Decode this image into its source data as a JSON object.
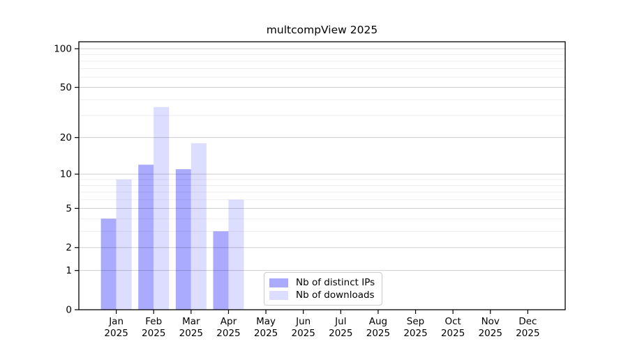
{
  "chart_data": {
    "type": "bar",
    "title": "multcompView 2025",
    "scale": "log1p",
    "categories": [
      "Jan",
      "Feb",
      "Mar",
      "Apr",
      "May",
      "Jun",
      "Jul",
      "Aug",
      "Sep",
      "Oct",
      "Nov",
      "Dec"
    ],
    "x_tick_second_line": "2025",
    "series": [
      {
        "name": "Nb of distinct IPs",
        "color": "#aaaaff",
        "values": [
          4,
          12,
          11,
          3,
          0,
          0,
          0,
          0,
          0,
          0,
          0,
          0
        ]
      },
      {
        "name": "Nb of downloads",
        "color": "#ddddff",
        "values": [
          9,
          35,
          18,
          6,
          0,
          0,
          0,
          0,
          0,
          0,
          0,
          0
        ]
      }
    ],
    "y_major_ticks": [
      0,
      1,
      2,
      5,
      10,
      20,
      50,
      100
    ],
    "y_minor_gridlines": [
      3,
      4,
      6,
      7,
      8,
      9,
      30,
      40,
      60,
      70,
      80,
      90
    ],
    "ylim_top_value": 100,
    "grid": "on",
    "legend_position": "bottom-center",
    "colors": {
      "axis": "#000000",
      "tick_label": "#000000",
      "major_grid": "#c9c9c9",
      "minor_grid": "#efefef",
      "legend_border": "#cccccc",
      "background": "#ffffff"
    }
  }
}
